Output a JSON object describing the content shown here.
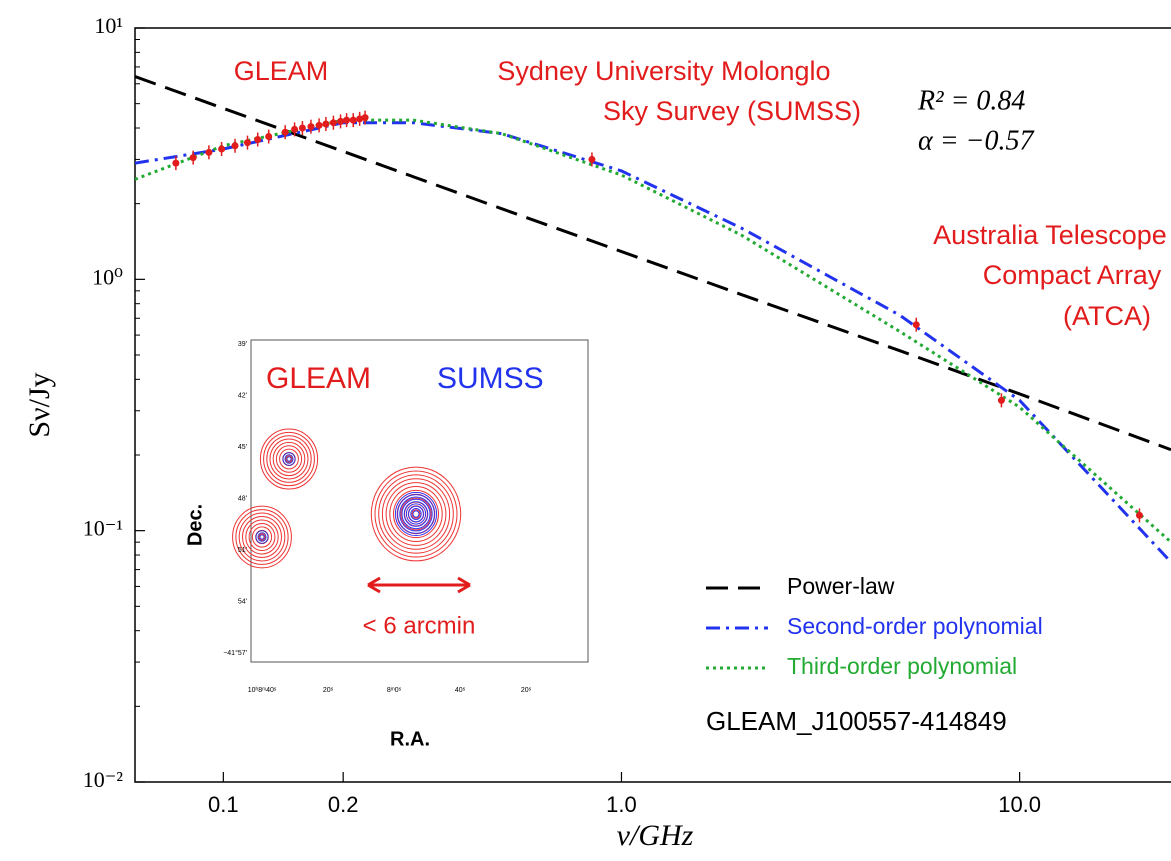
{
  "chart_data": {
    "type": "line",
    "x_label": "ν/GHz",
    "y_label": "Sν/Jy",
    "log_x": true,
    "log_y": true,
    "xlim": [
      0.06,
      24
    ],
    "ylim": [
      0.01,
      10
    ],
    "xticks": [
      0.1,
      0.2,
      {
        "value": 1,
        "label": "1.0"
      },
      {
        "value": 10,
        "label": "10.0"
      }
    ],
    "yticks": [
      {
        "value": 0.01,
        "label": "10⁻²"
      },
      {
        "value": 0.1,
        "label": "10⁻¹"
      },
      {
        "value": 1,
        "label": "10⁰"
      },
      {
        "value": 10,
        "label": "10¹"
      }
    ],
    "legend_position": "lower right",
    "series": [
      {
        "name": "Power-law",
        "color": "#000000",
        "dash": "dashed",
        "x": [
          0.06,
          0.1,
          0.2,
          0.3,
          0.5,
          1,
          2,
          5,
          10,
          24
        ],
        "values": [
          6.41,
          4.79,
          3.23,
          2.56,
          1.91,
          1.29,
          0.87,
          0.52,
          0.35,
          0.21
        ]
      },
      {
        "name": "Second-order polynomial",
        "color": "#2233ee",
        "dash": "dashdot",
        "x": [
          0.06,
          0.1,
          0.2,
          0.3,
          0.5,
          1,
          2,
          5,
          10,
          24
        ],
        "values": [
          2.9,
          3.3,
          4.2,
          4.2,
          3.8,
          2.7,
          1.6,
          0.72,
          0.33,
          0.075
        ]
      },
      {
        "name": "Third-order polynomial",
        "color": "#22aa33",
        "dash": "dotted",
        "x": [
          0.06,
          0.1,
          0.2,
          0.3,
          0.5,
          1,
          2,
          5,
          10,
          24
        ],
        "values": [
          2.5,
          3.4,
          4.3,
          4.3,
          3.8,
          2.6,
          1.5,
          0.62,
          0.31,
          0.09
        ]
      }
    ],
    "points": {
      "color": "#e21c1c",
      "x": [
        0.076,
        0.084,
        0.092,
        0.099,
        0.107,
        0.115,
        0.122,
        0.13,
        0.143,
        0.151,
        0.158,
        0.166,
        0.174,
        0.181,
        0.189,
        0.197,
        0.204,
        0.212,
        0.22,
        0.227,
        0.843,
        5.5,
        9,
        20
      ],
      "values": [
        2.9,
        3.05,
        3.2,
        3.3,
        3.4,
        3.5,
        3.6,
        3.7,
        3.85,
        3.95,
        4.0,
        4.05,
        4.1,
        4.15,
        4.2,
        4.25,
        4.3,
        4.3,
        4.35,
        4.4,
        3.0,
        0.66,
        0.33,
        0.115
      ]
    },
    "annotations": [
      "GLEAM",
      "Sydney University Molonglo",
      "Sky Survey (SUMSS)",
      "Australia Telescope",
      "Compact Array",
      "(ATCA)"
    ],
    "fit_stats": [
      "R² = 0.84",
      "α = −0.57"
    ],
    "source_name": "GLEAM_J100557-414849"
  },
  "inset": {
    "labels": [
      "GLEAM",
      "SUMSS"
    ],
    "y_label": "Dec.",
    "x_label": "R.A.",
    "scale_label": "< 6 arcmin",
    "y_ticks": [
      "39'",
      "42'",
      "45'",
      "48'",
      "51'",
      "54'",
      "−41°57'"
    ],
    "x_ticks": [
      "10ʰ8ᵐ40ˢ",
      "20ˢ",
      "8ᵐ0ˢ",
      "40ˢ",
      "20ˢ"
    ]
  }
}
